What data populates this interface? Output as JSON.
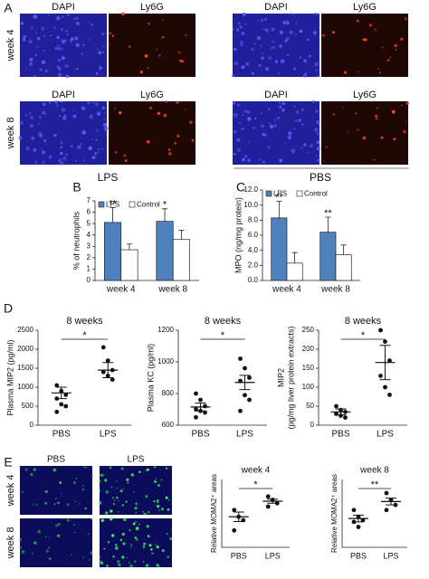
{
  "figure": {
    "panel_labels": [
      "A",
      "B",
      "C",
      "D",
      "E"
    ],
    "a": {
      "row_headers": [
        [
          "DAPI",
          "Ly6G",
          "DAPI",
          "Ly6G"
        ],
        [
          "DAPI",
          "Ly6G",
          "DAPI",
          "Ly6G"
        ]
      ],
      "rows": [
        "week 4",
        "week 8"
      ],
      "groups": [
        "LPS",
        "PBS"
      ]
    },
    "e": {
      "columns": [
        "PBS",
        "LPS"
      ],
      "rows": [
        "week 4",
        "week 8"
      ]
    }
  },
  "chart_data": [
    {
      "type": "bar",
      "ylabel": "% of neutrophils",
      "categories": [
        "week 4",
        "week 8"
      ],
      "series": [
        {
          "name": "LPS",
          "color": "#4f81bd",
          "values": [
            5.1,
            5.2
          ],
          "errors": [
            1.3,
            1.1
          ]
        },
        {
          "name": "Control",
          "color": "#ffffff",
          "values": [
            2.7,
            3.6
          ],
          "errors": [
            0.5,
            0.8
          ]
        }
      ],
      "annotations": [
        "**",
        "*"
      ],
      "ylim": [
        0,
        7
      ],
      "yticks": [
        0,
        1,
        2,
        3,
        4,
        5,
        6,
        7
      ]
    },
    {
      "type": "bar",
      "ylabel": "MPO (ng/mg protein)",
      "categories": [
        "week 4",
        "week 8"
      ],
      "series": [
        {
          "name": "LPS",
          "color": "#4f81bd",
          "values": [
            8.3,
            6.4
          ],
          "errors": [
            2.2,
            2.0
          ]
        },
        {
          "name": "Control",
          "color": "#ffffff",
          "values": [
            2.3,
            3.4
          ],
          "errors": [
            1.4,
            1.3
          ]
        }
      ],
      "annotations": [
        "**",
        "**"
      ],
      "ylim": [
        0,
        12
      ],
      "yticks": [
        {
          "value": 0,
          "label": "0.0"
        },
        {
          "value": 2,
          "label": "2.0"
        },
        {
          "value": 4,
          "label": "4.0"
        },
        {
          "value": 6,
          "label": "6.0"
        },
        {
          "value": 8,
          "label": "8.0"
        },
        {
          "value": 10,
          "label": "10.0"
        },
        {
          "value": 12,
          "label": "12.0"
        }
      ]
    },
    {
      "type": "dot",
      "title": "8 weeks",
      "ylabel": "Plasma MIP2 (pg/ml)",
      "categories": [
        "PBS",
        "LPS"
      ],
      "points": [
        [
          1050,
          900,
          800,
          700,
          550,
          500,
          350
        ],
        [
          2050,
          1700,
          1450,
          1400,
          1300,
          1200
        ]
      ],
      "means": [
        850,
        1450
      ],
      "sems": [
        150,
        200
      ],
      "significance": "*",
      "ylim": [
        0,
        2500
      ],
      "yticks": [
        0,
        500,
        1000,
        1500,
        2000,
        2500
      ]
    },
    {
      "type": "dot",
      "title": "8 weeks",
      "ylabel": "Plasma KC (pg/ml)",
      "categories": [
        "PBS",
        "LPS"
      ],
      "points": [
        [
          800,
          760,
          720,
          700,
          690,
          680,
          650
        ],
        [
          1020,
          960,
          900,
          880,
          790,
          760,
          690
        ]
      ],
      "means": [
        715,
        870
      ],
      "sems": [
        25,
        45
      ],
      "significance": "*",
      "ylim": [
        600,
        1200
      ],
      "yticks": [
        600,
        800,
        1000,
        1200
      ]
    },
    {
      "type": "dot",
      "title": "8 weeks",
      "ylabel": [
        "MIP2",
        "(pg/mg liver protein extracts)"
      ],
      "categories": [
        "PBS",
        "LPS"
      ],
      "points": [
        [
          50,
          40,
          35,
          30,
          25,
          20
        ],
        [
          250,
          220,
          170,
          130,
          100,
          80
        ]
      ],
      "means": [
        35,
        165
      ],
      "sems": [
        8,
        45
      ],
      "significance": "*",
      "ylim": [
        0,
        250
      ],
      "yticks": [
        0,
        50,
        100,
        150,
        200,
        250
      ]
    },
    {
      "type": "dot",
      "title": "week 4",
      "ylabel": "Relative MOMA2⁺ areas",
      "categories": [
        "PBS",
        "LPS"
      ],
      "points": [
        [
          55,
          45,
          40,
          25
        ],
        [
          75,
          70,
          65,
          60
        ]
      ],
      "means": [
        45,
        68
      ],
      "sems": [
        7,
        3
      ],
      "significance": "*",
      "ylim": [
        0,
        100
      ]
    },
    {
      "type": "dot",
      "title": "week 8",
      "ylabel": "Relative MOMA2⁺ areas",
      "categories": [
        "PBS",
        "LPS"
      ],
      "points": [
        [
          62,
          58,
          56,
          55,
          52
        ],
        [
          72,
          68,
          65,
          62
        ]
      ],
      "means": [
        57,
        67
      ],
      "sems": [
        2,
        2
      ],
      "significance": "**",
      "ylim": [
        40,
        80
      ]
    }
  ]
}
